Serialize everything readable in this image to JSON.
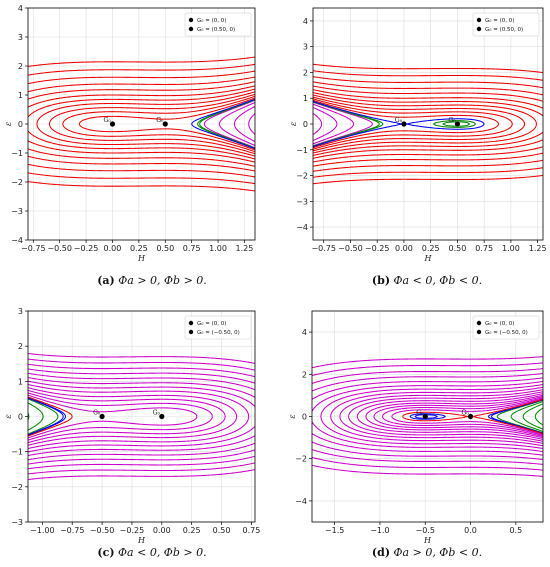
{
  "chart_data": [
    {
      "id": "a",
      "type": "line",
      "caption_tag": "(a)",
      "caption": "Φa > 0, Φb > 0.",
      "xlabel": "H",
      "ylabel": "ε",
      "xlim": [
        -0.8,
        1.35
      ],
      "ylim": [
        -4,
        4
      ],
      "xticks": [
        -0.75,
        -0.5,
        -0.25,
        0.0,
        0.25,
        0.5,
        0.75,
        1.0,
        1.25
      ],
      "xtick_labels": [
        "−0.75",
        "−0.50",
        "−0.25",
        "0.00",
        "0.25",
        "0.50",
        "0.75",
        "1.00",
        "1.25"
      ],
      "yticks": [
        -4,
        -3,
        -2,
        -1,
        0,
        1,
        2,
        3,
        4
      ],
      "ytick_labels": [
        "−4",
        "−3",
        "−2",
        "−1",
        "0",
        "1",
        "2",
        "3",
        "4"
      ],
      "grid": true,
      "legend_position": "top-right",
      "legend": [
        "G₀ = (0, 0)",
        "G₀ = (0.50, 0)"
      ],
      "equilibria": [
        {
          "x": 0.0,
          "y": 0,
          "label": "G₀"
        },
        {
          "x": 0.5,
          "y": 0,
          "label": "G₀"
        }
      ],
      "model": {
        "a": -1,
        "b": 0.5
      },
      "separatrix_color": "#0000ee",
      "series": [
        {
          "color": "#ee0000",
          "levels": [
            0.035,
            0.09,
            0.16,
            0.25,
            0.36,
            0.5,
            0.7,
            0.95,
            1.3,
            1.75,
            2.3
          ]
        },
        {
          "color": "#cc00cc",
          "levels": [
            -0.03,
            -0.09,
            -0.18,
            -0.3,
            -0.48,
            -0.72,
            -1.05
          ]
        },
        {
          "color": "#008800",
          "levels": [
            -0.012,
            -0.017
          ]
        }
      ]
    },
    {
      "id": "b",
      "type": "line",
      "caption_tag": "(b)",
      "caption": "Φa < 0, Φb < 0.",
      "xlabel": "H",
      "ylabel": "ε",
      "xlim": [
        -0.85,
        1.3
      ],
      "ylim": [
        -4.5,
        4.5
      ],
      "xticks": [
        -0.75,
        -0.5,
        -0.25,
        0.0,
        0.25,
        0.5,
        0.75,
        1.0,
        1.25
      ],
      "xtick_labels": [
        "−0.75",
        "−0.50",
        "−0.25",
        "0.00",
        "0.25",
        "0.50",
        "0.75",
        "1.00",
        "1.25"
      ],
      "yticks": [
        -4,
        -3,
        -2,
        -1,
        0,
        1,
        2,
        3,
        4
      ],
      "ytick_labels": [
        "−4",
        "−3",
        "−2",
        "−1",
        "0",
        "1",
        "2",
        "3",
        "4"
      ],
      "grid": true,
      "legend_position": "top-right",
      "legend": [
        "G₀ = (0, 0)",
        "G₀ = (0.50, 0)"
      ],
      "equilibria": [
        {
          "x": 0.0,
          "y": 0,
          "label": "G₀"
        },
        {
          "x": 0.5,
          "y": 0,
          "label": "G₀"
        }
      ],
      "model": {
        "a": 1,
        "b": 0.5
      },
      "separatrix_color": "#0000ee",
      "series": [
        {
          "color": "#ee0000",
          "levels": [
            0.035,
            0.09,
            0.16,
            0.25,
            0.36,
            0.5,
            0.7,
            0.95,
            1.3,
            1.75,
            2.3
          ]
        },
        {
          "color": "#cc00cc",
          "levels": [
            -0.03,
            -0.09,
            -0.18,
            -0.3,
            -0.48,
            -0.72
          ]
        },
        {
          "color": "#008800",
          "levels": [
            -0.012,
            -0.017
          ]
        }
      ]
    },
    {
      "id": "c",
      "type": "line",
      "caption_tag": "(c)",
      "caption": "Φa < 0, Φb > 0.",
      "xlabel": "H",
      "ylabel": "ε",
      "xlim": [
        -1.12,
        0.78
      ],
      "ylim": [
        -3,
        3
      ],
      "xticks": [
        -1.0,
        -0.75,
        -0.5,
        -0.25,
        0.0,
        0.25,
        0.5,
        0.75
      ],
      "xtick_labels": [
        "−1.00",
        "−0.75",
        "−0.50",
        "−0.25",
        "0.00",
        "0.25",
        "0.50",
        "0.75"
      ],
      "yticks": [
        -3,
        -2,
        -1,
        0,
        1,
        2,
        3
      ],
      "ytick_labels": [
        "−3",
        "−2",
        "−1",
        "0",
        "1",
        "2",
        "3"
      ],
      "grid": true,
      "legend_position": "top-right",
      "legend": [
        "G₀ = (0, 0)",
        "G₀ = (−0.50, 0)"
      ],
      "equilibria": [
        {
          "x": -0.5,
          "y": 0,
          "label": "G₀"
        },
        {
          "x": 0.0,
          "y": 0,
          "label": "G₀"
        }
      ],
      "model": {
        "a": 1,
        "b": -0.5
      },
      "separatrix_color": "#ee0000",
      "series": [
        {
          "color": "#cc00cc",
          "levels": [
            0.03,
            0.07,
            0.12,
            0.18,
            0.26,
            0.35,
            0.46,
            0.6,
            0.76,
            0.95,
            1.18,
            1.45
          ]
        },
        {
          "color": "#008800",
          "levels": [
            -0.03,
            -0.08,
            -0.15,
            -0.25,
            -0.38
          ]
        },
        {
          "color": "#0000ee",
          "levels": [
            -0.012,
            -0.017
          ]
        }
      ]
    },
    {
      "id": "d",
      "type": "line",
      "caption_tag": "(d)",
      "caption": "Φa > 0, Φb < 0.",
      "xlabel": "H",
      "ylabel": "ε",
      "xlim": [
        -1.75,
        0.8
      ],
      "ylim": [
        -5,
        5
      ],
      "xticks": [
        -1.5,
        -1.0,
        -0.5,
        0.0,
        0.5
      ],
      "xtick_labels": [
        "−1.5",
        "−1.0",
        "−0.5",
        "0.0",
        "0.5"
      ],
      "yticks": [
        -4,
        -2,
        0,
        2,
        4
      ],
      "ytick_labels": [
        "−4",
        "−2",
        "0",
        "2",
        "4"
      ],
      "grid": true,
      "legend_position": "top-right",
      "legend": [
        "G₀ = (0, 0)",
        "G₀ = (−0.50, 0)"
      ],
      "equilibria": [
        {
          "x": -0.5,
          "y": 0,
          "label": "G₀"
        },
        {
          "x": 0.0,
          "y": 0,
          "label": "G₀"
        }
      ],
      "model": {
        "a": -1,
        "b": -0.5
      },
      "separatrix_color": "#ee0000",
      "series": [
        {
          "color": "#cc00cc",
          "levels": [
            0.03,
            0.07,
            0.12,
            0.18,
            0.26,
            0.36,
            0.48,
            0.63,
            0.82,
            1.05,
            1.35,
            1.75,
            2.25,
            2.9,
            3.7
          ]
        },
        {
          "color": "#008800",
          "levels": [
            -0.03,
            -0.08,
            -0.15,
            -0.25,
            -0.38,
            -0.55,
            -0.78,
            -1.1
          ]
        },
        {
          "color": "#0000ee",
          "levels": [
            -0.012,
            -0.017
          ]
        }
      ]
    }
  ]
}
